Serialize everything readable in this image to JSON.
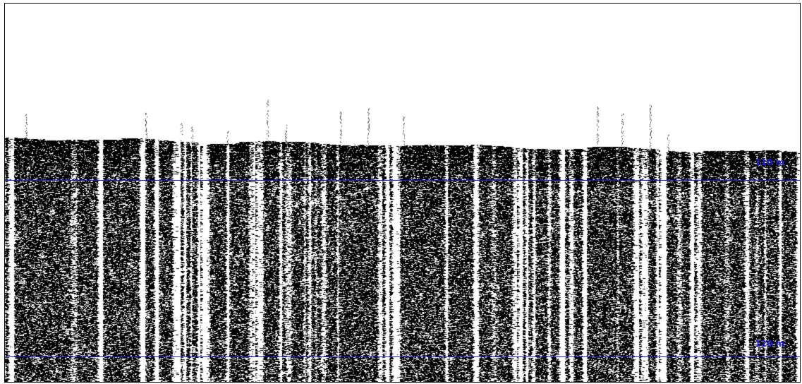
{
  "echogram": {
    "colors": {
      "ink": "#000000",
      "background": "#ffffff",
      "depth_marker": "#1a1adf"
    },
    "depth_markers": [
      {
        "label": "110 m",
        "depth": 110
      },
      {
        "label": "120 m",
        "depth": 120
      }
    ]
  }
}
